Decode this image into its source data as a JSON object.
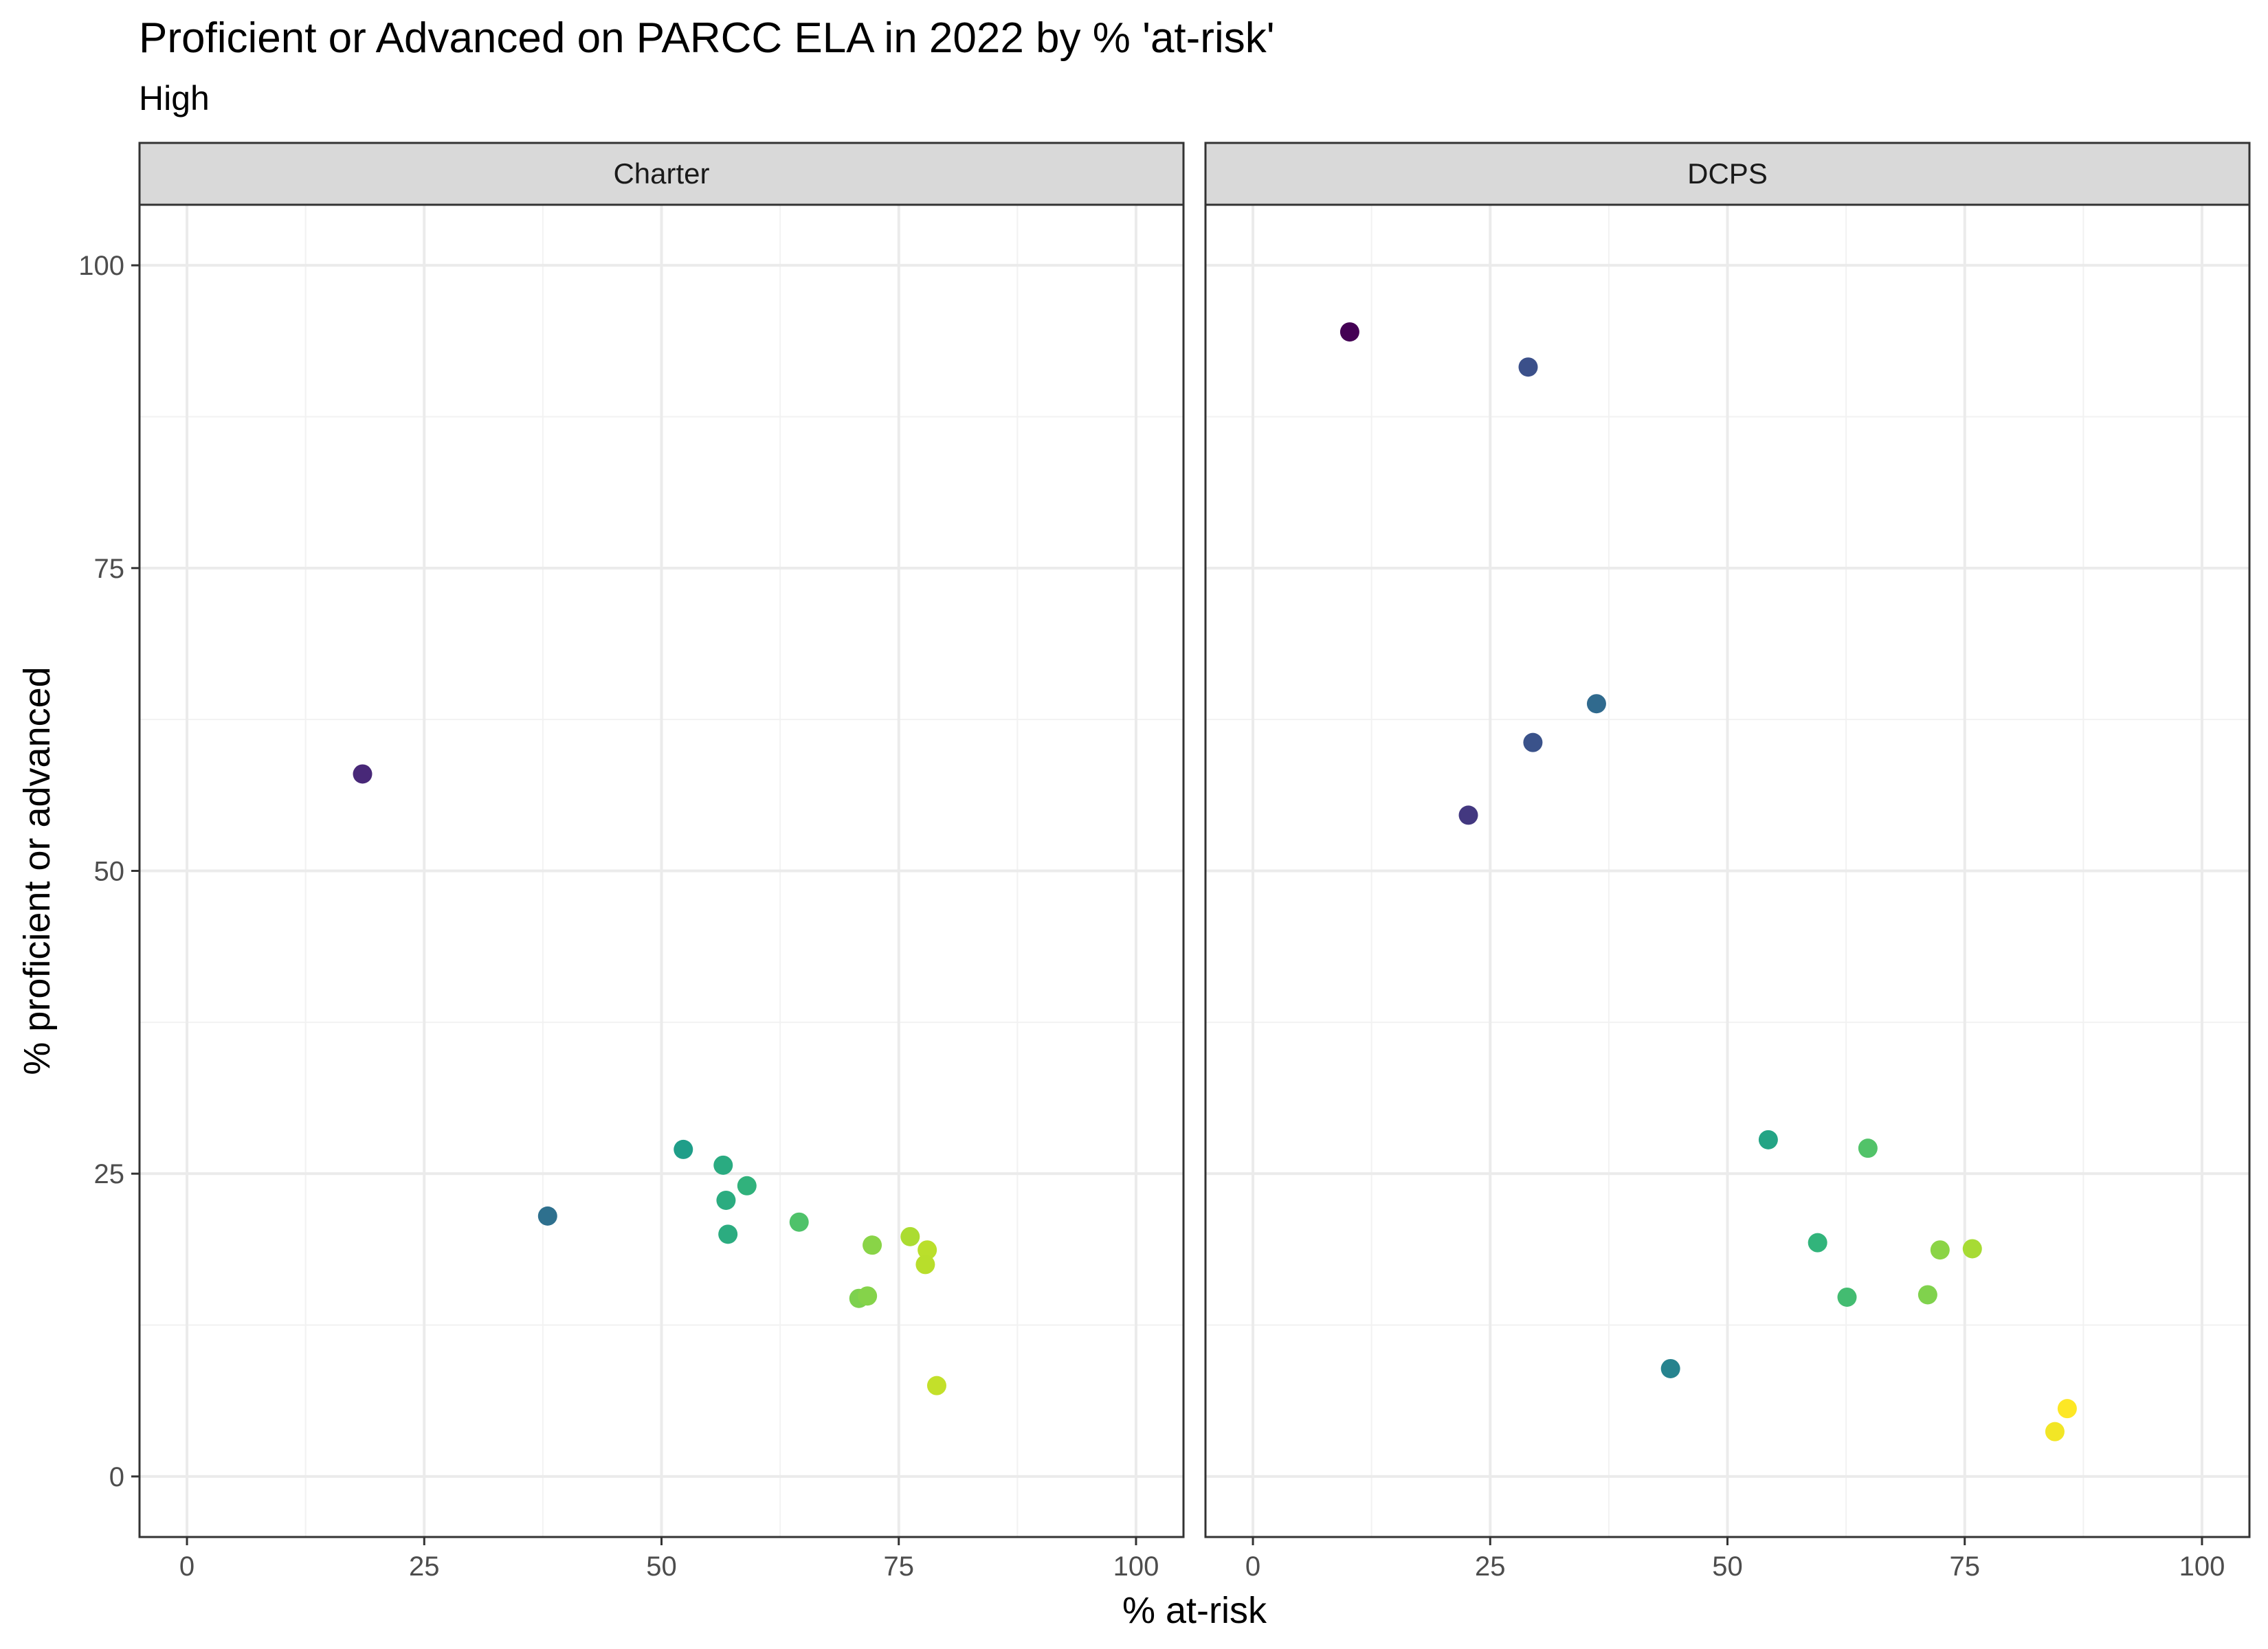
{
  "chart_data": {
    "type": "scatter",
    "title": "Proficient or Advanced on PARCC ELA in 2022 by % 'at-risk'",
    "subtitle": "High",
    "xlabel": "% at-risk",
    "ylabel": "% proficient or advanced",
    "xlim": [
      -5,
      105
    ],
    "ylim": [
      -5,
      105
    ],
    "x_ticks": [
      0,
      25,
      50,
      75,
      100
    ],
    "y_ticks": [
      0,
      25,
      50,
      75,
      100
    ],
    "grid": true,
    "color_scale": "viridis by % at-risk",
    "facets": [
      {
        "name": "Charter",
        "points": [
          {
            "x": 18.5,
            "y": 58.0
          },
          {
            "x": 38.0,
            "y": 21.5
          },
          {
            "x": 52.3,
            "y": 27.0
          },
          {
            "x": 56.5,
            "y": 25.7
          },
          {
            "x": 56.8,
            "y": 22.8
          },
          {
            "x": 59.0,
            "y": 24.0
          },
          {
            "x": 57.0,
            "y": 20.0
          },
          {
            "x": 64.5,
            "y": 21.0
          },
          {
            "x": 72.2,
            "y": 19.1
          },
          {
            "x": 76.2,
            "y": 19.8
          },
          {
            "x": 78.0,
            "y": 18.7
          },
          {
            "x": 77.8,
            "y": 17.5
          },
          {
            "x": 70.8,
            "y": 14.7
          },
          {
            "x": 71.7,
            "y": 14.9
          },
          {
            "x": 79.0,
            "y": 7.5
          }
        ]
      },
      {
        "name": "DCPS",
        "points": [
          {
            "x": 10.2,
            "y": 94.5
          },
          {
            "x": 29.0,
            "y": 91.6
          },
          {
            "x": 36.2,
            "y": 63.8
          },
          {
            "x": 29.5,
            "y": 60.6
          },
          {
            "x": 22.7,
            "y": 54.6
          },
          {
            "x": 54.3,
            "y": 27.8
          },
          {
            "x": 64.8,
            "y": 27.1
          },
          {
            "x": 59.5,
            "y": 19.3
          },
          {
            "x": 72.4,
            "y": 18.7
          },
          {
            "x": 75.8,
            "y": 18.8
          },
          {
            "x": 62.6,
            "y": 14.8
          },
          {
            "x": 71.1,
            "y": 15.0
          },
          {
            "x": 44.0,
            "y": 8.9
          },
          {
            "x": 85.8,
            "y": 5.6
          },
          {
            "x": 84.5,
            "y": 3.7
          }
        ]
      }
    ]
  }
}
